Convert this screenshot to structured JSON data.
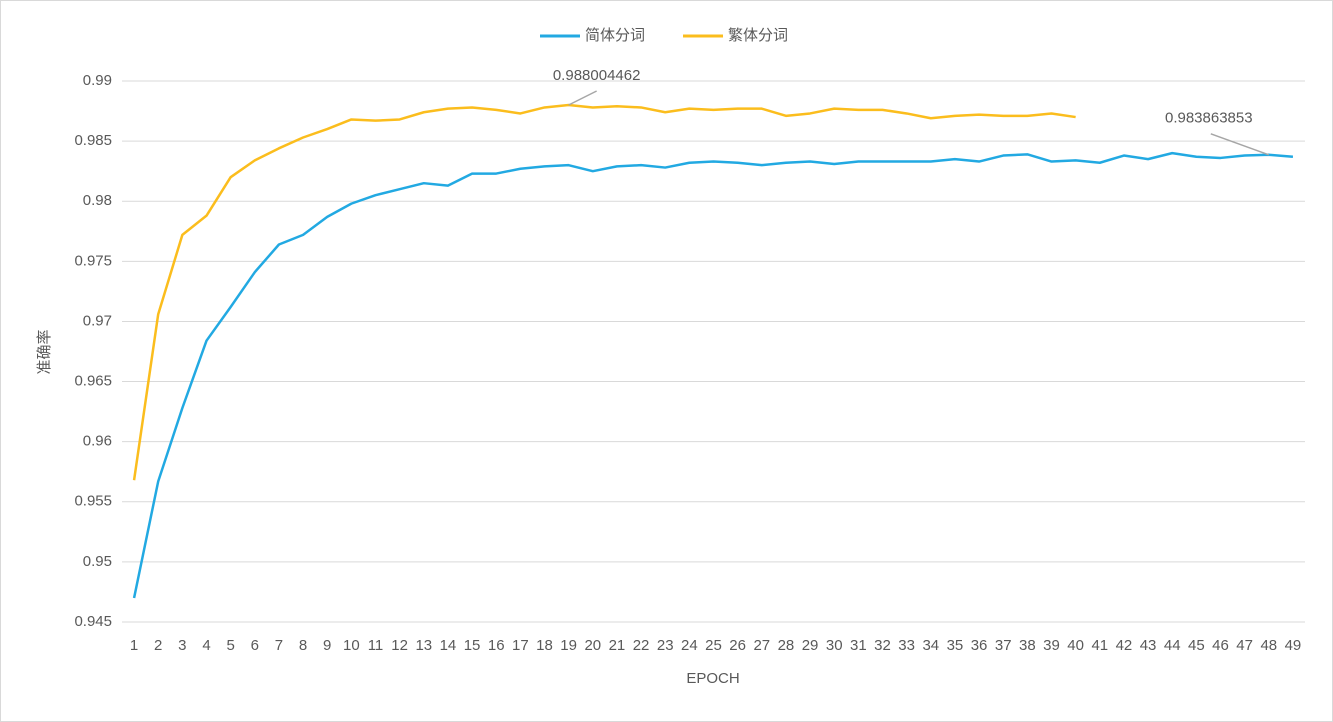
{
  "chart_data": {
    "type": "line",
    "x_label": "EPOCH",
    "y_label": "准确率",
    "categories": [
      1,
      2,
      3,
      4,
      5,
      6,
      7,
      8,
      9,
      10,
      11,
      12,
      13,
      14,
      15,
      16,
      17,
      18,
      19,
      20,
      21,
      22,
      23,
      24,
      25,
      26,
      27,
      28,
      29,
      30,
      31,
      32,
      33,
      34,
      35,
      36,
      37,
      38,
      39,
      40,
      41,
      42,
      43,
      44,
      45,
      46,
      47,
      48,
      49
    ],
    "series": [
      {
        "name": "简体分词",
        "color": "#22a9e2",
        "values": [
          0.947,
          0.9567,
          0.9628,
          0.9684,
          0.9712,
          0.9741,
          0.9764,
          0.9772,
          0.9787,
          0.9798,
          0.9805,
          0.981,
          0.9815,
          0.9813,
          0.9823,
          0.9823,
          0.9827,
          0.9829,
          0.983,
          0.9825,
          0.9829,
          0.983,
          0.9828,
          0.9832,
          0.9833,
          0.9832,
          0.983,
          0.9832,
          0.9833,
          0.9831,
          0.9833,
          0.9833,
          0.9833,
          0.9833,
          0.9835,
          0.9833,
          0.9838,
          0.9839,
          0.9833,
          0.9834,
          0.9832,
          0.9838,
          0.9835,
          0.984,
          0.9837,
          0.9836,
          0.9838,
          0.983863853,
          0.9837
        ],
        "value_labels": [
          null,
          null,
          null,
          null,
          null,
          null,
          null,
          null,
          null,
          null,
          null,
          null,
          null,
          null,
          null,
          null,
          null,
          null,
          null,
          null,
          null,
          null,
          null,
          null,
          null,
          null,
          null,
          null,
          null,
          null,
          null,
          null,
          null,
          null,
          null,
          null,
          null,
          null,
          null,
          null,
          null,
          null,
          null,
          null,
          null,
          null,
          null,
          "0.983863853",
          null
        ]
      },
      {
        "name": "繁体分词",
        "color": "#fbbd1d",
        "values": [
          0.9568,
          0.9706,
          0.9772,
          0.9788,
          0.982,
          0.9834,
          0.9844,
          0.9853,
          0.986,
          0.9868,
          0.9867,
          0.9868,
          0.9874,
          0.9877,
          0.9878,
          0.9876,
          0.9873,
          0.9878,
          0.988004462,
          0.9878,
          0.9879,
          0.9878,
          0.9874,
          0.9877,
          0.9876,
          0.9877,
          0.9877,
          0.9871,
          0.9873,
          0.9877,
          0.9876,
          0.9876,
          0.9873,
          0.9869,
          0.9871,
          0.9872,
          0.9871,
          0.9871,
          0.9873,
          0.987,
          null,
          null,
          null,
          null,
          null,
          null,
          null,
          null,
          null
        ],
        "value_labels": [
          null,
          null,
          null,
          null,
          null,
          null,
          null,
          null,
          null,
          null,
          null,
          null,
          null,
          null,
          null,
          null,
          null,
          null,
          "0.988004462",
          null,
          null,
          null,
          null,
          null,
          null,
          null,
          null,
          null,
          null,
          null,
          null,
          null,
          null,
          null,
          null,
          null,
          null,
          null,
          null,
          null,
          null,
          null,
          null,
          null,
          null,
          null,
          null,
          null,
          null
        ]
      }
    ],
    "ylim": [
      0.945,
      0.99
    ],
    "yticks": [
      0.945,
      0.95,
      0.955,
      0.96,
      0.965,
      0.97,
      0.975,
      0.98,
      0.985,
      0.99
    ],
    "grid": true,
    "legend": "top"
  }
}
